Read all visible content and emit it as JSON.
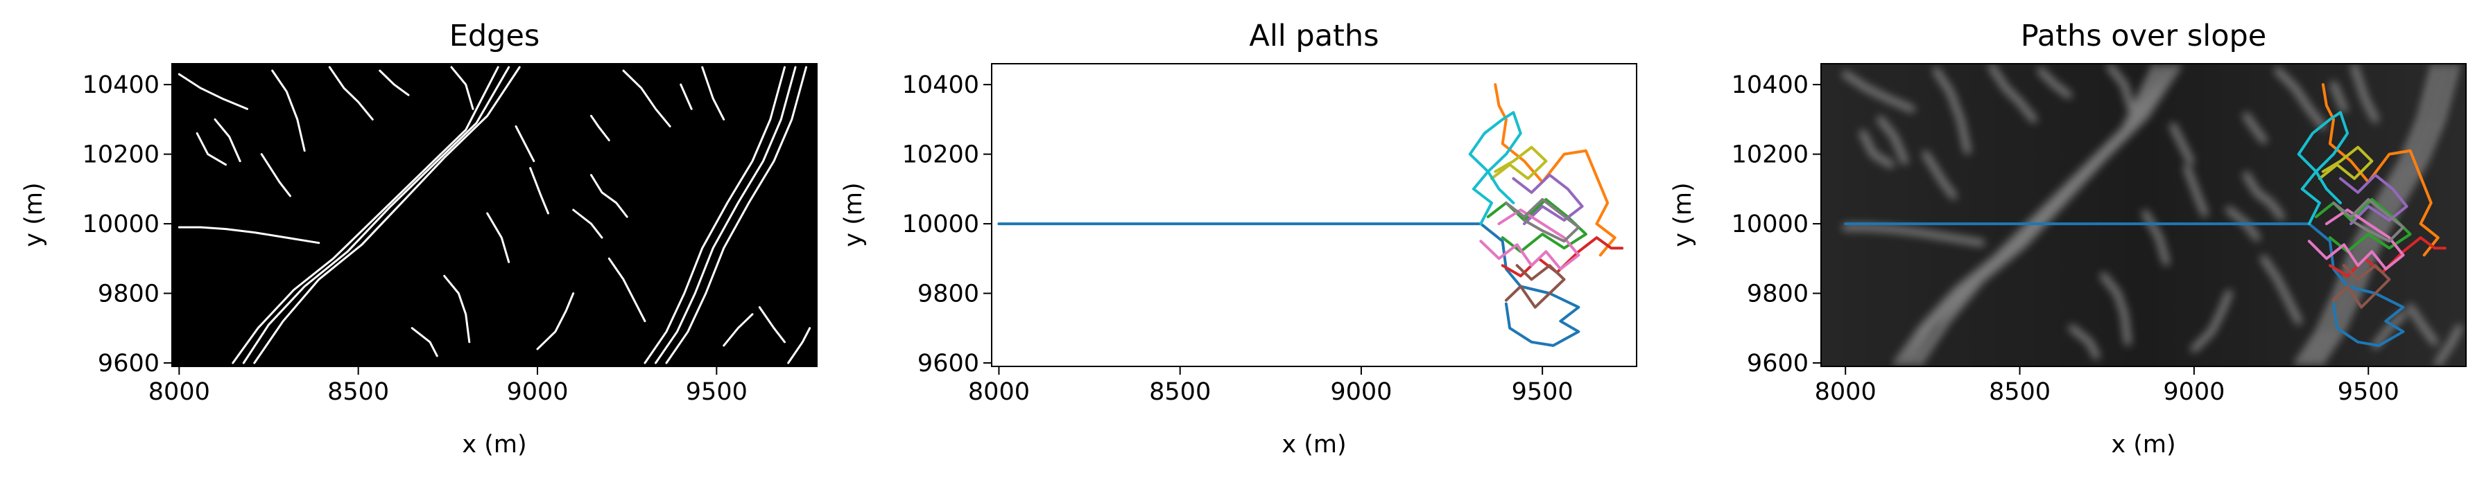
{
  "chart_data": [
    {
      "type": "heatmap",
      "title": "Edges",
      "xlabel": "x (m)",
      "ylabel": "y (m)",
      "xlim": [
        7980,
        9780
      ],
      "ylim": [
        9590,
        10460
      ],
      "xticks": [
        8000,
        8500,
        9000,
        9500
      ],
      "yticks": [
        9600,
        9800,
        10000,
        10200,
        10400
      ],
      "xtick_labels": [
        "8000",
        "8500",
        "9000",
        "9500"
      ],
      "ytick_labels": [
        "9600",
        "9800",
        "10000",
        "10200",
        "10400"
      ],
      "background": "#000000",
      "edge_color": "#ffffff",
      "grid": false,
      "edge_traces": [
        {
          "x": [
            8000,
            8060,
            8120,
            8190
          ],
          "y": [
            10430,
            10390,
            10360,
            10330
          ]
        },
        {
          "x": [
            8100,
            8140,
            8170
          ],
          "y": [
            10300,
            10250,
            10180
          ]
        },
        {
          "x": [
            8050,
            8080,
            8130
          ],
          "y": [
            10260,
            10200,
            10170
          ]
        },
        {
          "x": [
            8260,
            8300,
            8330,
            8350
          ],
          "y": [
            10440,
            10380,
            10300,
            10210
          ]
        },
        {
          "x": [
            8230,
            8280,
            8310
          ],
          "y": [
            10200,
            10120,
            10080
          ]
        },
        {
          "x": [
            8150,
            8220,
            8320,
            8430,
            8560,
            8680,
            8800,
            8890
          ],
          "y": [
            9600,
            9700,
            9810,
            9900,
            10030,
            10150,
            10270,
            10450
          ]
        },
        {
          "x": [
            8180,
            8250,
            8350,
            8470,
            8590,
            8710,
            8830,
            8920
          ],
          "y": [
            9600,
            9710,
            9820,
            9920,
            10050,
            10170,
            10290,
            10450
          ]
        },
        {
          "x": [
            8210,
            8290,
            8390,
            8510,
            8630,
            8740,
            8860,
            8950
          ],
          "y": [
            9600,
            9720,
            9840,
            9940,
            10070,
            10190,
            10310,
            10450
          ]
        },
        {
          "x": [
            8000,
            8060,
            8130,
            8210,
            8300,
            8390
          ],
          "y": [
            9990,
            9990,
            9985,
            9975,
            9960,
            9945
          ]
        },
        {
          "x": [
            8420,
            8460,
            8500,
            8540
          ],
          "y": [
            10450,
            10390,
            10350,
            10300
          ]
        },
        {
          "x": [
            8560,
            8600,
            8640
          ],
          "y": [
            10440,
            10400,
            10370
          ]
        },
        {
          "x": [
            8760,
            8800,
            8820
          ],
          "y": [
            10450,
            10400,
            10330
          ]
        },
        {
          "x": [
            8740,
            8780,
            8800,
            8810
          ],
          "y": [
            9850,
            9800,
            9740,
            9660
          ]
        },
        {
          "x": [
            8650,
            8700,
            8720
          ],
          "y": [
            9700,
            9660,
            9620
          ]
        },
        {
          "x": [
            8860,
            8900,
            8920
          ],
          "y": [
            10030,
            9960,
            9890
          ]
        },
        {
          "x": [
            8980,
            9010,
            9030
          ],
          "y": [
            10160,
            10080,
            10030
          ]
        },
        {
          "x": [
            8940,
            8970,
            8990
          ],
          "y": [
            10280,
            10220,
            10180
          ]
        },
        {
          "x": [
            9000,
            9050,
            9080,
            9100
          ],
          "y": [
            9640,
            9690,
            9750,
            9800
          ]
        },
        {
          "x": [
            9100,
            9150,
            9180
          ],
          "y": [
            10040,
            10000,
            9960
          ]
        },
        {
          "x": [
            9150,
            9180,
            9220,
            9250
          ],
          "y": [
            10140,
            10090,
            10060,
            10020
          ]
        },
        {
          "x": [
            9150,
            9170,
            9200
          ],
          "y": [
            10310,
            10280,
            10240
          ]
        },
        {
          "x": [
            9240,
            9290,
            9330,
            9370
          ],
          "y": [
            10440,
            10390,
            10330,
            10280
          ]
        },
        {
          "x": [
            9200,
            9240,
            9270,
            9300
          ],
          "y": [
            9900,
            9840,
            9780,
            9720
          ]
        },
        {
          "x": [
            9300,
            9360,
            9410,
            9460,
            9530,
            9600,
            9650,
            9690
          ],
          "y": [
            9600,
            9690,
            9800,
            9930,
            10060,
            10180,
            10300,
            10450
          ]
        },
        {
          "x": [
            9330,
            9390,
            9440,
            9490,
            9560,
            9630,
            9680,
            9720
          ],
          "y": [
            9600,
            9690,
            9800,
            9930,
            10060,
            10180,
            10300,
            10450
          ]
        },
        {
          "x": [
            9360,
            9420,
            9470,
            9520,
            9590,
            9660,
            9710,
            9750
          ],
          "y": [
            9600,
            9690,
            9800,
            9930,
            10060,
            10180,
            10300,
            10450
          ]
        },
        {
          "x": [
            9460,
            9490,
            9520
          ],
          "y": [
            10450,
            10360,
            10300
          ]
        },
        {
          "x": [
            9400,
            9430
          ],
          "y": [
            10400,
            10330
          ]
        },
        {
          "x": [
            9620,
            9660,
            9690
          ],
          "y": [
            9760,
            9700,
            9660
          ]
        },
        {
          "x": [
            9700,
            9740,
            9760
          ],
          "y": [
            9600,
            9660,
            9700
          ]
        },
        {
          "x": [
            9520,
            9560,
            9600
          ],
          "y": [
            9650,
            9700,
            9740
          ]
        }
      ]
    },
    {
      "type": "line",
      "title": "All paths",
      "xlabel": "x (m)",
      "ylabel": "y (m)",
      "xlim": [
        7980,
        9760
      ],
      "ylim": [
        9590,
        10460
      ],
      "xticks": [
        8000,
        8500,
        9000,
        9500
      ],
      "yticks": [
        9600,
        9800,
        10000,
        10200,
        10400
      ],
      "xtick_labels": [
        "8000",
        "8500",
        "9000",
        "9500"
      ],
      "ytick_labels": [
        "9600",
        "9800",
        "10000",
        "10200",
        "10400"
      ],
      "grid": false,
      "series": [
        {
          "color": "#1f77b4",
          "x": [
            8000,
            9330,
            9390,
            9400,
            9440,
            9520,
            9600,
            9550,
            9600,
            9530,
            9470,
            9410,
            9400
          ],
          "y": [
            10000,
            10000,
            9950,
            9870,
            9820,
            9800,
            9760,
            9720,
            9690,
            9650,
            9660,
            9700,
            9770
          ]
        },
        {
          "color": "#ff7f0e",
          "x": [
            9370,
            9380,
            9400,
            9390,
            9450,
            9500,
            9560,
            9620,
            9680,
            9650,
            9700,
            9660
          ],
          "y": [
            10400,
            10340,
            10300,
            10230,
            10180,
            10120,
            10200,
            10210,
            10060,
            10000,
            9960,
            9910
          ]
        },
        {
          "color": "#2ca02c",
          "x": [
            9350,
            9400,
            9450,
            9510,
            9570,
            9620,
            9560,
            9500,
            9440,
            9390
          ],
          "y": [
            10020,
            10060,
            10010,
            10070,
            10020,
            9970,
            9930,
            9970,
            9920,
            9960
          ]
        },
        {
          "color": "#d62728",
          "x": [
            9390,
            9440,
            9490,
            9540,
            9600,
            9650,
            9690,
            9720
          ],
          "y": [
            9880,
            9850,
            9900,
            9860,
            9920,
            9960,
            9930,
            9930
          ]
        },
        {
          "color": "#9467bd",
          "x": [
            9420,
            9470,
            9520,
            9570,
            9610,
            9560,
            9500,
            9450
          ],
          "y": [
            10130,
            10090,
            10140,
            10100,
            10050,
            10010,
            10050,
            10000
          ]
        },
        {
          "color": "#8c564b",
          "x": [
            9400,
            9440,
            9480,
            9520,
            9560,
            9520,
            9470,
            9430
          ],
          "y": [
            9780,
            9820,
            9760,
            9800,
            9840,
            9880,
            9840,
            9880
          ]
        },
        {
          "color": "#e377c2",
          "x": [
            9330,
            9380,
            9430,
            9470,
            9510,
            9550,
            9600,
            9560,
            9500,
            9440,
            9380
          ],
          "y": [
            9950,
            9900,
            9940,
            9880,
            9920,
            9870,
            9910,
            9960,
            10000,
            10040,
            10000
          ]
        },
        {
          "color": "#7f7f7f",
          "x": [
            9400,
            9450,
            9500,
            9550,
            9600,
            9560,
            9500,
            9450
          ],
          "y": [
            10060,
            10020,
            10070,
            10030,
            9990,
            9950,
            9980,
            10010
          ]
        },
        {
          "color": "#bcbd22",
          "x": [
            9360,
            9410,
            9460,
            9510,
            9470,
            9420,
            9370
          ],
          "y": [
            10130,
            10170,
            10130,
            10180,
            10220,
            10180,
            10150
          ]
        },
        {
          "color": "#17becf",
          "x": [
            9330,
            9360,
            9310,
            9350,
            9300,
            9340,
            9390,
            9420,
            9440,
            9400,
            9350,
            9380,
            9420
          ],
          "y": [
            10000,
            10060,
            10100,
            10150,
            10200,
            10260,
            10300,
            10320,
            10260,
            10200,
            10150,
            10100,
            10060
          ]
        }
      ]
    },
    {
      "type": "line",
      "title": "Paths over slope",
      "xlabel": "x (m)",
      "ylabel": "y (m)",
      "xlim": [
        7930,
        9780
      ],
      "ylim": [
        9590,
        10460
      ],
      "xticks": [
        8000,
        8500,
        9000,
        9500
      ],
      "yticks": [
        9600,
        9800,
        10000,
        10200,
        10400
      ],
      "xtick_labels": [
        "8000",
        "8500",
        "9000",
        "9500"
      ],
      "ytick_labels": [
        "9600",
        "9800",
        "10000",
        "10200",
        "10400"
      ],
      "background": "#1a1a1a",
      "grid": false,
      "series": [
        {
          "color": "#1f77b4",
          "x": [
            8000,
            9330,
            9390,
            9400,
            9440,
            9520,
            9600,
            9550,
            9600,
            9530,
            9470,
            9410,
            9400
          ],
          "y": [
            10000,
            10000,
            9950,
            9870,
            9820,
            9800,
            9760,
            9720,
            9690,
            9650,
            9660,
            9700,
            9770
          ]
        },
        {
          "color": "#ff7f0e",
          "x": [
            9370,
            9380,
            9400,
            9390,
            9450,
            9500,
            9560,
            9620,
            9680,
            9650,
            9700,
            9660
          ],
          "y": [
            10400,
            10340,
            10300,
            10230,
            10180,
            10120,
            10200,
            10210,
            10060,
            10000,
            9960,
            9910
          ]
        },
        {
          "color": "#2ca02c",
          "x": [
            9350,
            9400,
            9450,
            9510,
            9570,
            9620,
            9560,
            9500,
            9440,
            9390
          ],
          "y": [
            10020,
            10060,
            10010,
            10070,
            10020,
            9970,
            9930,
            9970,
            9920,
            9960
          ]
        },
        {
          "color": "#d62728",
          "x": [
            9390,
            9440,
            9490,
            9540,
            9600,
            9650,
            9690,
            9720
          ],
          "y": [
            9880,
            9850,
            9900,
            9860,
            9920,
            9960,
            9930,
            9930
          ]
        },
        {
          "color": "#9467bd",
          "x": [
            9420,
            9470,
            9520,
            9570,
            9610,
            9560,
            9500,
            9450
          ],
          "y": [
            10130,
            10090,
            10140,
            10100,
            10050,
            10010,
            10050,
            10000
          ]
        },
        {
          "color": "#8c564b",
          "x": [
            9400,
            9440,
            9480,
            9520,
            9560,
            9520,
            9470,
            9430
          ],
          "y": [
            9780,
            9820,
            9760,
            9800,
            9840,
            9880,
            9840,
            9880
          ]
        },
        {
          "color": "#e377c2",
          "x": [
            9330,
            9380,
            9430,
            9470,
            9510,
            9550,
            9600,
            9560,
            9500,
            9440,
            9380
          ],
          "y": [
            9950,
            9900,
            9940,
            9880,
            9920,
            9870,
            9910,
            9960,
            10000,
            10040,
            10000
          ]
        },
        {
          "color": "#7f7f7f",
          "x": [
            9400,
            9450,
            9500,
            9550,
            9600,
            9560,
            9500,
            9450
          ],
          "y": [
            10060,
            10020,
            10070,
            10030,
            9990,
            9950,
            9980,
            10010
          ]
        },
        {
          "color": "#bcbd22",
          "x": [
            9360,
            9410,
            9460,
            9510,
            9470,
            9420,
            9370
          ],
          "y": [
            10130,
            10170,
            10130,
            10180,
            10220,
            10180,
            10150
          ]
        },
        {
          "color": "#17becf",
          "x": [
            9330,
            9360,
            9310,
            9350,
            9300,
            9340,
            9390,
            9420,
            9440,
            9400,
            9350,
            9380,
            9420
          ],
          "y": [
            10000,
            10060,
            10100,
            10150,
            10200,
            10260,
            10300,
            10320,
            10260,
            10200,
            10150,
            10100,
            10060
          ]
        }
      ]
    }
  ]
}
